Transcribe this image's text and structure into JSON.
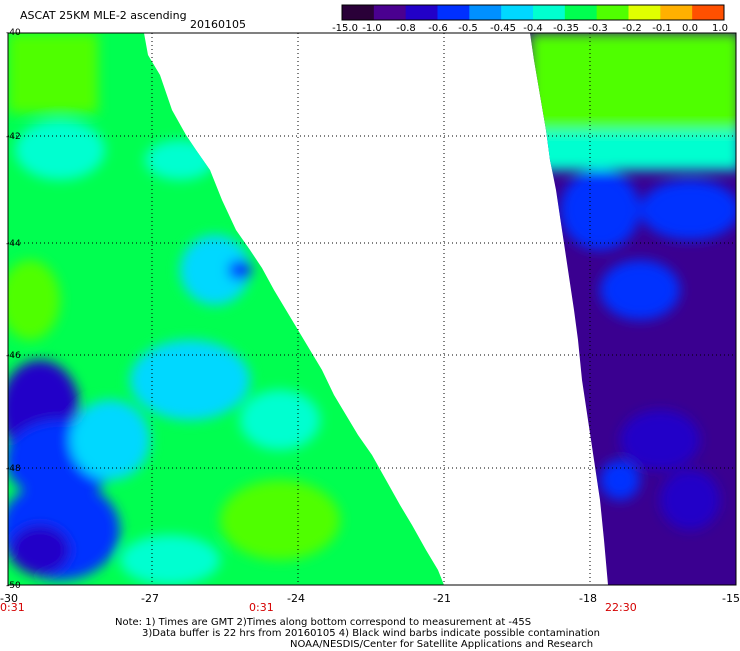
{
  "header": {
    "title": "ASCAT 25KM MLE-2 ascending",
    "date": "20160105"
  },
  "colorbar": {
    "labels": [
      "-15.0",
      "-1.0",
      "-0.8",
      "-0.6",
      "-0.5",
      "-0.45",
      "-0.4",
      "-0.35",
      "-0.3",
      "-0.2",
      "-0.1",
      "0.0",
      "1.0"
    ],
    "colors": [
      "#2a0038",
      "#4a0090",
      "#2200c8",
      "#0030ff",
      "#0090ff",
      "#00d8ff",
      "#00ffd0",
      "#00ff50",
      "#50ff00",
      "#e0ff00",
      "#ffb000",
      "#ff5000",
      "#ff0000"
    ]
  },
  "axes": {
    "y_labels": [
      "-40",
      "-42",
      "-44",
      "-46",
      "-48",
      "-50"
    ],
    "x_labels": [
      "-30",
      "-27",
      "-24",
      "-21",
      "-18",
      "-15"
    ],
    "time_labels": [
      "0:31",
      "0:31",
      "22:30"
    ]
  },
  "notes": {
    "line1": "Note: 1) Times are GMT 2)Times along bottom correspond to measurement at -45S",
    "line2": "3)Data buffer is 22 hrs from 20160105 4) Black wind barbs indicate possible contamination",
    "line3": "NOAA/NESDIS/Center for Satellite Applications and Research"
  }
}
